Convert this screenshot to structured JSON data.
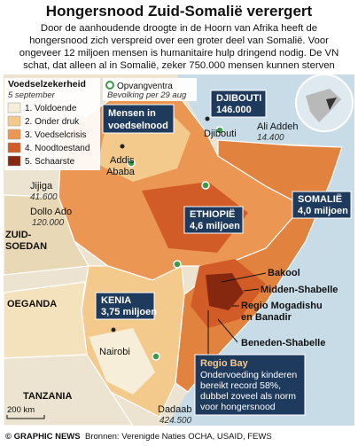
{
  "header": {
    "title": "Hongersnood Zuid-Somalië verergert",
    "subtitle": [
      "Door de aanhoudende droogte in de Hoorn van Afrika heeft de",
      "hongersnood zich verspreid over een groter deel van Somalië. Voor",
      "ongeveer 12 miljoen mensen is humanitaire hulp dringend nodig. De VN",
      "schat, dat alleen al in Somalië, zeker 750.000 mensen kunnen sterven"
    ]
  },
  "legend": {
    "title": "Voedselzekerheid",
    "date": "5 september",
    "items": [
      {
        "label": "1. Voldoende",
        "color": "#f6eed9"
      },
      {
        "label": "2. Onder druk",
        "color": "#f4c98c"
      },
      {
        "label": "3. Voedselcrisis",
        "color": "#eb9652"
      },
      {
        "label": "4. Noodtoestand",
        "color": "#d25c28"
      },
      {
        "label": "5. Schaarste",
        "color": "#86280f"
      }
    ]
  },
  "camps_legend": {
    "camps": "Opvangventra",
    "population": "Bevolking per 29 aug"
  },
  "boxes": {
    "need": [
      "Mensen in",
      "voedselnood"
    ],
    "djibouti": {
      "name": "DJIBOUTI",
      "value": "146.000"
    },
    "ethiopia": {
      "name": "ETHIOPIË",
      "value": "4,6 miljoen"
    },
    "somalia": {
      "name": "SOMALIË",
      "value": "4,0 miljoen"
    },
    "kenya": {
      "name": "KENIA",
      "value": "3,75 miljoen"
    }
  },
  "places": {
    "djibouti": "Djibouti",
    "ali_addeh": {
      "name": "Ali Addeh",
      "value": "14.400"
    },
    "addis": [
      "Addis",
      "Ababa"
    ],
    "jijiga": {
      "name": "Jijiga",
      "value": "41.600"
    },
    "dollo_ado": {
      "name": "Dollo Ado",
      "value": "120.000"
    },
    "south_sudan": [
      "ZUID-",
      "SOEDAN"
    ],
    "uganda": "OEGANDA",
    "nairobi": "Nairobi",
    "tanzania": "TANZANIA",
    "dadaab": {
      "name": "Dadaab",
      "value": "424.500"
    },
    "bakool": "Bakool",
    "middle_shabelle": "Midden-Shabelle",
    "mogadishu": [
      "Regio Mogadishu",
      "en Banadir"
    ],
    "lower_shabelle": "Beneden-Shabelle"
  },
  "bay_box": {
    "title": "Regio Bay",
    "text": [
      "Ondervoeding kinderen",
      "bereikt record 58%,",
      "dubbel zoveel als norm",
      "voor hongersnood"
    ]
  },
  "scale": "200 km",
  "footer": {
    "credit": "© GRAPHIC NEWS",
    "sources": "Bronnen: Verenigde Naties OCHA, USAID, FEWS"
  }
}
